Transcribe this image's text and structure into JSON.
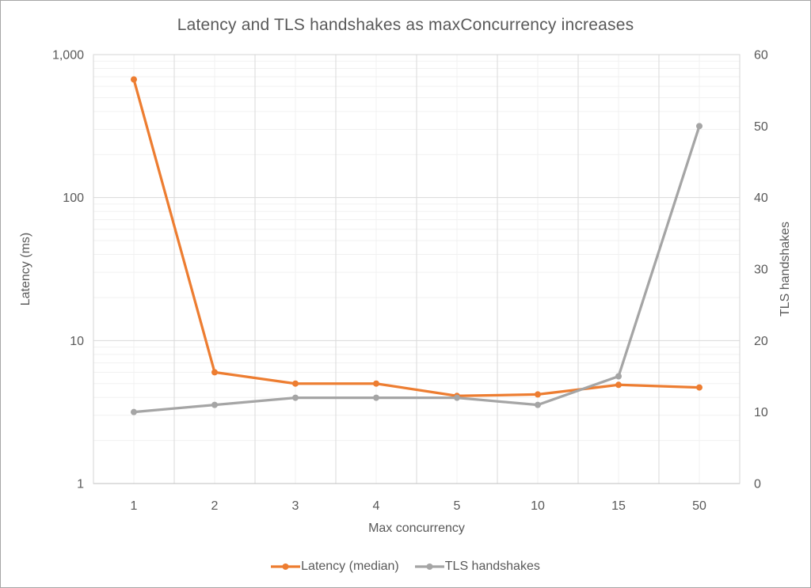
{
  "chart_data": {
    "type": "line",
    "title": "Latency and TLS handshakes as maxConcurrency increases",
    "xlabel": "Max concurrency",
    "categories": [
      "1",
      "2",
      "3",
      "4",
      "5",
      "10",
      "15",
      "50"
    ],
    "series": [
      {
        "name": "Latency (median)",
        "axis": "left",
        "color": "#ED7D31",
        "values": [
          670,
          6,
          5,
          5,
          4.1,
          4.2,
          4.9,
          4.7
        ]
      },
      {
        "name": "TLS handshakes",
        "axis": "right",
        "color": "#A5A5A5",
        "values": [
          10,
          11,
          12,
          12,
          12,
          11,
          15,
          50
        ]
      }
    ],
    "left_axis": {
      "label": "Latency (ms)",
      "scale": "log",
      "min": 1,
      "max": 1000,
      "ticks": [
        "1,000",
        "100",
        "10",
        "1"
      ],
      "tick_values": [
        1000,
        100,
        10,
        1
      ]
    },
    "right_axis": {
      "label": "TLS handshakes",
      "scale": "linear",
      "min": 0,
      "max": 60,
      "ticks": [
        "60",
        "50",
        "40",
        "30",
        "20",
        "10",
        "0"
      ],
      "tick_values": [
        60,
        50,
        40,
        30,
        20,
        10,
        0
      ]
    },
    "legend_position": "bottom",
    "grid": {
      "h_major_decades": true,
      "h_minor_log": true,
      "v_major_boundaries": true,
      "v_minor_centers": true
    }
  },
  "palette": {
    "text": "#595959",
    "grid_major": "#DADADA",
    "grid_minor": "#F1F1F1",
    "plot_border": "#D6D6D6",
    "axis_line": "#BFBFBF",
    "frame_border": "#A6A6A6",
    "background": "#FFFFFF"
  }
}
